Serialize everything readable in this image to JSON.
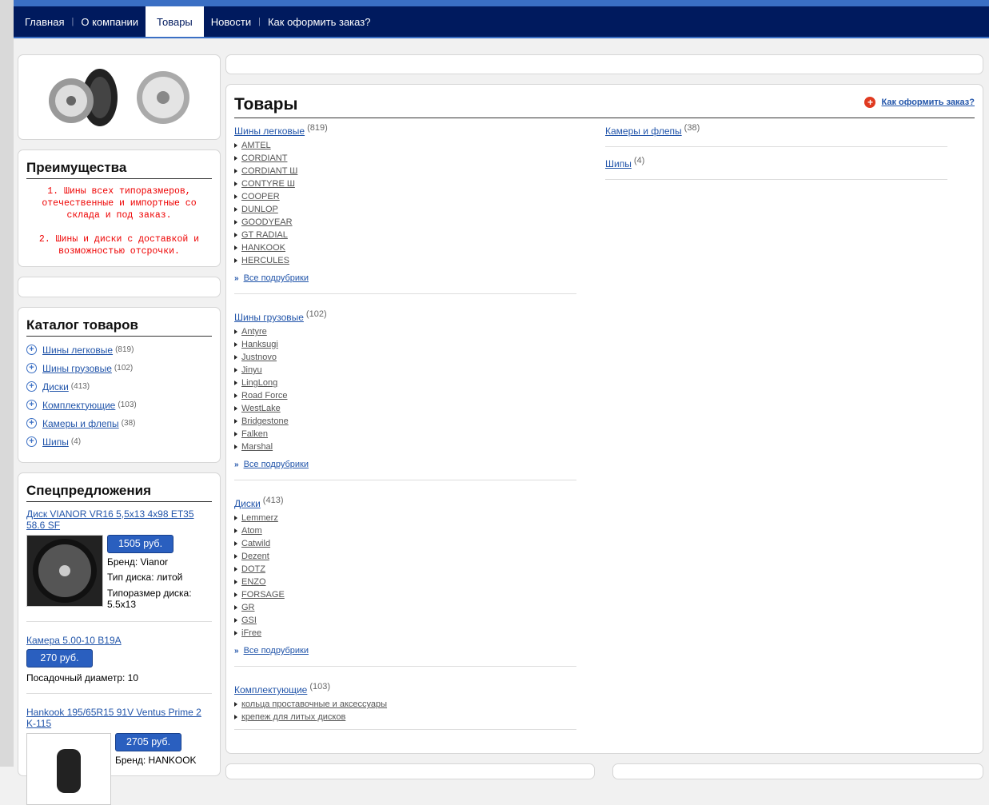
{
  "nav": {
    "items": [
      "Главная",
      "О компании",
      "Товары",
      "Новости",
      "Как оформить заказ?"
    ],
    "active": "Товары"
  },
  "advantages": {
    "title": "Преимущества",
    "items": [
      "1. Шины всех типоразмеров, отечественные и импортные со склада и под заказ.",
      "2. Шины и диски с доставкой и возможностью отсрочки."
    ]
  },
  "catalog": {
    "title": "Каталог товаров",
    "items": [
      {
        "label": "Шины легковые",
        "count": "(819)"
      },
      {
        "label": "Шины грузовые",
        "count": "(102)"
      },
      {
        "label": "Диски",
        "count": "(413)"
      },
      {
        "label": "Комплектующие",
        "count": "(103)"
      },
      {
        "label": "Камеры и флепы",
        "count": "(38)"
      },
      {
        "label": "Шипы",
        "count": "(4)"
      }
    ]
  },
  "specials": {
    "title": "Спецпредложения",
    "items": [
      {
        "title": "Диск VIANOR VR16 5,5x13 4x98 ET35 58.6 SF",
        "price": "1505 руб.",
        "props": [
          "Бренд: Vianor",
          "Тип диска: литой",
          "Типоразмер диска: 5.5x13"
        ]
      },
      {
        "title": "Камера 5.00-10 B19A",
        "price": "270 руб.",
        "props": [
          "Посадочный диаметр: 10"
        ]
      },
      {
        "title": "Hankook 195/65R15 91V Ventus Prime 2 K-115",
        "price": "2705 руб.",
        "props": [
          "Бренд: HANKOOK"
        ]
      }
    ]
  },
  "main": {
    "title": "Товары",
    "order_link": "Как оформить заказ?",
    "all_label": "Все подрубрики",
    "sections": [
      {
        "label": "Шины легковые",
        "count": "(819)",
        "items": [
          "AMTEL",
          "CORDIANT",
          "CORDIANT Ш",
          "CONTYRE Ш",
          "COOPER",
          "DUNLOP",
          "GOODYEAR",
          "GT RADIAL",
          "HANKOOK",
          "HERCULES"
        ]
      },
      {
        "label": "Шины грузовые",
        "count": "(102)",
        "items": [
          "Antyre",
          "Hanksugi",
          "Justnovo",
          "Jinyu",
          "LingLong",
          "Road Force",
          "WestLake",
          "Bridgestone",
          "Falken",
          "Marshal"
        ]
      },
      {
        "label": "Диски",
        "count": "(413)",
        "items": [
          "Lemmerz",
          "Atom",
          "Catwild",
          "Dezent",
          "DOTZ",
          "ENZO",
          "FORSAGE",
          "GR",
          "GSI",
          "iFree"
        ]
      },
      {
        "label": "Комплектующие",
        "count": "(103)",
        "items": [
          "кольца проставочные и аксессуары",
          "крепеж для литых дисков"
        ]
      },
      {
        "label": "Камеры и флепы",
        "count": "(38)",
        "items": []
      },
      {
        "label": "Шипы",
        "count": "(4)",
        "items": []
      }
    ]
  }
}
